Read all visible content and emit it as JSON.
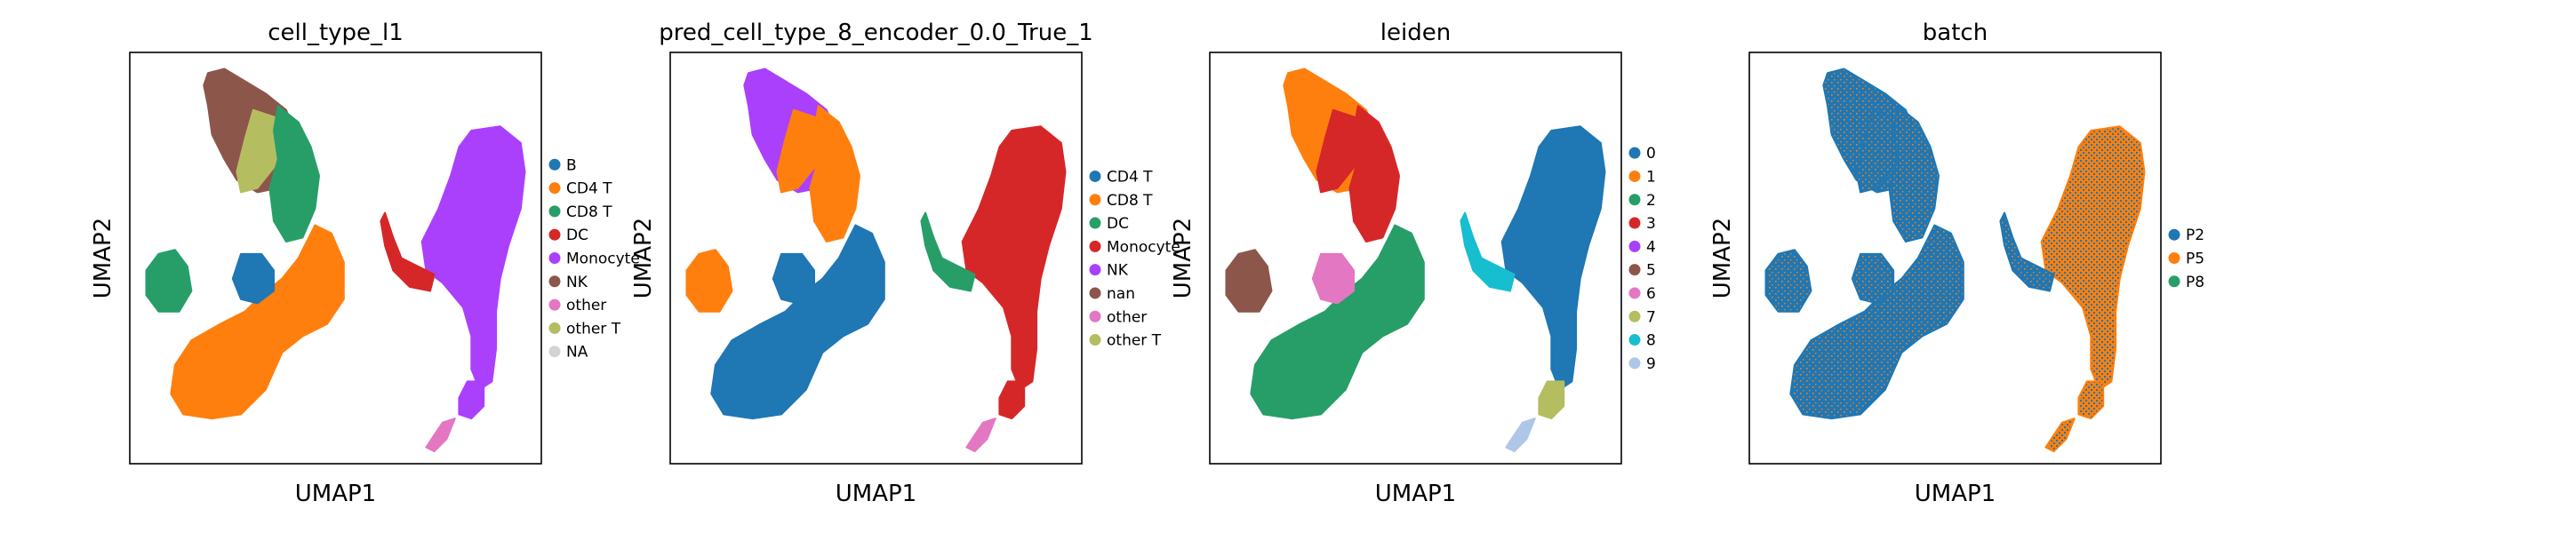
{
  "figure": {
    "background": "#ffffff"
  },
  "chart_data": [
    {
      "type": "scatter",
      "title": "cell_type_l1",
      "xlabel": "UMAP1",
      "ylabel": "UMAP2",
      "grid": false,
      "legend_placement": "right",
      "legend": [
        {
          "label": "B",
          "color": "#1f77b4"
        },
        {
          "label": "CD4 T",
          "color": "#ff7f0e"
        },
        {
          "label": "CD8 T",
          "color": "#279e68"
        },
        {
          "label": "DC",
          "color": "#d62728"
        },
        {
          "label": "Monocyte",
          "color": "#aa40fc"
        },
        {
          "label": "NK",
          "color": "#8c564b"
        },
        {
          "label": "other",
          "color": "#e377c2"
        },
        {
          "label": "other T",
          "color": "#b5bd61"
        },
        {
          "label": "NA",
          "color": "#d3d3d3"
        }
      ],
      "regions": [
        {
          "category": "NK",
          "shape": "nk"
        },
        {
          "category": "other T",
          "shape": "otherT"
        },
        {
          "category": "CD8 T",
          "shape": "cd8"
        },
        {
          "category": "CD4 T",
          "shape": "cd4"
        },
        {
          "category": "CD8 T",
          "shape": "leftIsland"
        },
        {
          "category": "B",
          "shape": "smallBlob"
        },
        {
          "category": "Monocyte",
          "shape": "mono"
        },
        {
          "category": "DC",
          "shape": "dcArm"
        },
        {
          "category": "Monocyte",
          "shape": "tailUpper"
        },
        {
          "category": "other",
          "shape": "tailLower"
        }
      ]
    },
    {
      "type": "scatter",
      "title": "pred_cell_type_8_encoder_0.0_True_1",
      "xlabel": "UMAP1",
      "ylabel": "UMAP2",
      "grid": false,
      "legend_placement": "right",
      "legend": [
        {
          "label": "CD4 T",
          "color": "#1f77b4"
        },
        {
          "label": "CD8 T",
          "color": "#ff7f0e"
        },
        {
          "label": "DC",
          "color": "#279e68"
        },
        {
          "label": "Monocyte",
          "color": "#d62728"
        },
        {
          "label": "NK",
          "color": "#aa40fc"
        },
        {
          "label": "nan",
          "color": "#8c564b"
        },
        {
          "label": "other",
          "color": "#e377c2"
        },
        {
          "label": "other T",
          "color": "#b5bd61"
        }
      ],
      "regions": [
        {
          "category": "NK",
          "shape": "nk"
        },
        {
          "category": "CD8 T",
          "shape": "otherT"
        },
        {
          "category": "CD8 T",
          "shape": "cd8"
        },
        {
          "category": "CD4 T",
          "shape": "cd4"
        },
        {
          "category": "CD8 T",
          "shape": "leftIsland"
        },
        {
          "category": "CD4 T",
          "shape": "smallBlob"
        },
        {
          "category": "Monocyte",
          "shape": "mono"
        },
        {
          "category": "DC",
          "shape": "dcArm"
        },
        {
          "category": "Monocyte",
          "shape": "tailUpper"
        },
        {
          "category": "other",
          "shape": "tailLower"
        }
      ]
    },
    {
      "type": "scatter",
      "title": "leiden",
      "xlabel": "UMAP1",
      "ylabel": "UMAP2",
      "grid": false,
      "legend_placement": "right",
      "legend": [
        {
          "label": "0",
          "color": "#1f77b4"
        },
        {
          "label": "1",
          "color": "#ff7f0e"
        },
        {
          "label": "2",
          "color": "#279e68"
        },
        {
          "label": "3",
          "color": "#d62728"
        },
        {
          "label": "4",
          "color": "#aa40fc"
        },
        {
          "label": "5",
          "color": "#8c564b"
        },
        {
          "label": "6",
          "color": "#e377c2"
        },
        {
          "label": "7",
          "color": "#b5bd61"
        },
        {
          "label": "8",
          "color": "#17becf"
        },
        {
          "label": "9",
          "color": "#aec7e8"
        }
      ],
      "regions": [
        {
          "category": "1",
          "shape": "nk"
        },
        {
          "category": "3",
          "shape": "otherT"
        },
        {
          "category": "3",
          "shape": "cd8"
        },
        {
          "category": "2",
          "shape": "cd4"
        },
        {
          "category": "5",
          "shape": "leftIsland"
        },
        {
          "category": "6",
          "shape": "smallBlob"
        },
        {
          "category": "0",
          "shape": "mono"
        },
        {
          "category": "8",
          "shape": "dcArm"
        },
        {
          "category": "7",
          "shape": "tailUpper"
        },
        {
          "category": "9",
          "shape": "tailLower"
        }
      ]
    },
    {
      "type": "scatter",
      "title": "batch",
      "xlabel": "UMAP1",
      "ylabel": "UMAP2",
      "grid": false,
      "legend_placement": "right",
      "legend": [
        {
          "label": "P2",
          "color": "#1f77b4"
        },
        {
          "label": "P5",
          "color": "#ff7f0e"
        },
        {
          "label": "P8",
          "color": "#279e68"
        }
      ],
      "regions": [
        {
          "category": "P2",
          "shape": "nk"
        },
        {
          "category": "P2",
          "shape": "otherT"
        },
        {
          "category": "P2",
          "shape": "cd8"
        },
        {
          "category": "P2",
          "shape": "cd4"
        },
        {
          "category": "P2",
          "shape": "leftIsland"
        },
        {
          "category": "P2",
          "shape": "smallBlob"
        },
        {
          "category": "P5",
          "shape": "mono"
        },
        {
          "category": "P2",
          "shape": "dcArm"
        },
        {
          "category": "P5",
          "shape": "tailUpper"
        },
        {
          "category": "P5",
          "shape": "tailLower"
        }
      ]
    }
  ]
}
